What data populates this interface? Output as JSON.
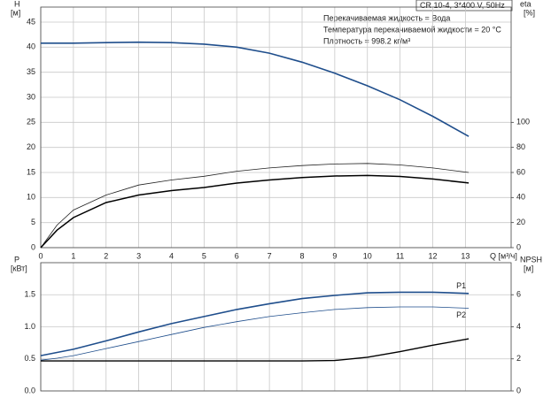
{
  "chart_data": [
    {
      "type": "line",
      "title": "CR 10-4, 3*400 V, 50Hz",
      "notes": [
        "Перекачиваемая жидкость = Вода",
        "Температура перекачиваемой жидкости = 20 °C",
        "Плотность = 998.2 кг/м³"
      ],
      "ylabel": [
        "H",
        "[м]"
      ],
      "y2label": [
        "eta",
        "[%]"
      ],
      "xlabel": "Q [м³/ч]",
      "x": [
        0,
        0.5,
        1,
        2,
        3,
        4,
        5,
        6,
        7,
        8,
        9,
        10,
        11,
        12,
        13.1
      ],
      "xlim": [
        0,
        14.4
      ],
      "xticks": [
        0,
        1,
        2,
        3,
        4,
        5,
        6,
        7,
        8,
        9,
        10,
        11,
        12,
        13
      ],
      "ylim": [
        0,
        48
      ],
      "yticks": [
        0,
        5,
        10,
        15,
        20,
        25,
        30,
        35,
        40,
        45
      ],
      "y2lim": [
        0,
        192
      ],
      "y2ticks": [
        0,
        20,
        40,
        60,
        80,
        100
      ],
      "grid": true,
      "series": [
        {
          "color": "#1f4e8c",
          "width": 1.6,
          "values": [
            40.8,
            40.8,
            40.8,
            40.9,
            41,
            40.9,
            40.6,
            40,
            38.8,
            37,
            34.8,
            32.3,
            29.5,
            26.2,
            22.2
          ]
        },
        {
          "color": "#222222",
          "width": 0.8,
          "axis": "y2",
          "values": [
            0,
            18,
            30,
            42,
            50,
            54,
            57,
            61,
            63.6,
            65.5,
            66.8,
            67.2,
            66,
            63.6,
            60
          ]
        },
        {
          "color": "#000000",
          "width": 1.5,
          "axis": "y2",
          "values": [
            0,
            14,
            24,
            36,
            42,
            45.5,
            48,
            51.5,
            54,
            56,
            57.2,
            57.6,
            56.8,
            54.8,
            51.6
          ]
        }
      ]
    },
    {
      "type": "line",
      "ylabel": [
        "P",
        "[кВт]"
      ],
      "y2label": [
        "NPSH",
        "[м]"
      ],
      "x": [
        0,
        0.5,
        1,
        2,
        3,
        4,
        5,
        6,
        7,
        8,
        9,
        10,
        11,
        12,
        13.1
      ],
      "xlim": [
        0,
        14.4
      ],
      "ylim": [
        0,
        2
      ],
      "yticks": [
        {
          "value": 0,
          "label": "0.0"
        },
        {
          "value": 0.5,
          "label": "0.5"
        },
        {
          "value": 1,
          "label": "1.0"
        },
        {
          "value": 1.5,
          "label": "1.5"
        }
      ],
      "y2lim": [
        0,
        8
      ],
      "y2ticks": [
        0,
        2,
        4,
        6
      ],
      "grid": true,
      "series": [
        {
          "name": "P1",
          "color": "#1f4e8c",
          "width": 1.6,
          "values": [
            0.55,
            0.6,
            0.65,
            0.78,
            0.92,
            1.05,
            1.16,
            1.27,
            1.36,
            1.44,
            1.49,
            1.53,
            1.54,
            1.54,
            1.52
          ]
        },
        {
          "name": "P2",
          "color": "#1f4e8c",
          "width": 0.8,
          "values": [
            0.48,
            0.51,
            0.55,
            0.66,
            0.77,
            0.88,
            0.99,
            1.08,
            1.16,
            1.22,
            1.27,
            1.3,
            1.31,
            1.31,
            1.29
          ]
        },
        {
          "color": "#000000",
          "width": 1.4,
          "axis": "y2",
          "values": [
            1.87,
            1.87,
            1.87,
            1.87,
            1.87,
            1.87,
            1.87,
            1.87,
            1.87,
            1.87,
            1.9,
            2.1,
            2.45,
            2.85,
            3.25
          ]
        }
      ]
    }
  ]
}
